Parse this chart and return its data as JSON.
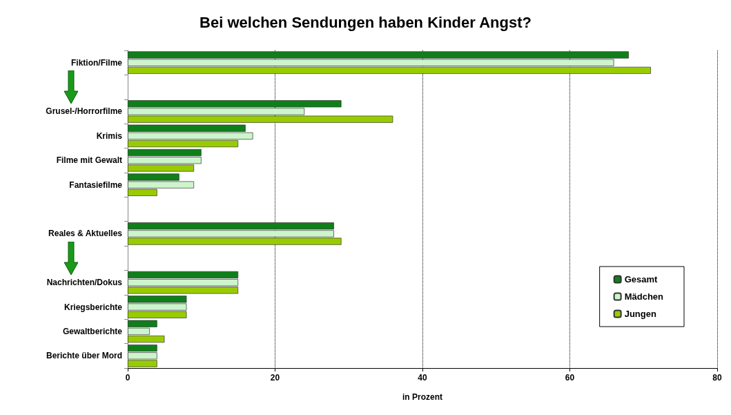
{
  "chart_data": {
    "type": "bar",
    "orientation": "horizontal",
    "title": "Bei welchen Sendungen haben Kinder Angst?",
    "xlabel": "in Prozent",
    "categories": [
      "Fiktion/Filme",
      null,
      "Grusel-/Horrorfilme",
      "Krimis",
      "Filme mit Gewalt",
      "Fantasiefilme",
      null,
      "Reales & Aktuelles",
      null,
      "Nachrichten/Dokus",
      "Kriegsberichte",
      "Gewaltberichte",
      "Berichte über Mord"
    ],
    "series": [
      {
        "name": "Gesamt",
        "color": "#0f7f1a",
        "values": [
          68,
          null,
          29,
          16,
          10,
          7,
          null,
          28,
          null,
          15,
          8,
          4,
          4
        ]
      },
      {
        "name": "Mädchen",
        "color": "#ccf5cc",
        "values": [
          66,
          null,
          24,
          17,
          10,
          9,
          null,
          28,
          null,
          15,
          8,
          3,
          4
        ]
      },
      {
        "name": "Jungen",
        "color": "#99cc00",
        "values": [
          71,
          null,
          36,
          15,
          9,
          4,
          null,
          29,
          null,
          15,
          8,
          5,
          4
        ]
      }
    ],
    "xlim": [
      0,
      80
    ],
    "xticks": [
      0,
      20,
      40,
      60,
      80
    ],
    "grid": "x",
    "legend": "bottom right"
  }
}
